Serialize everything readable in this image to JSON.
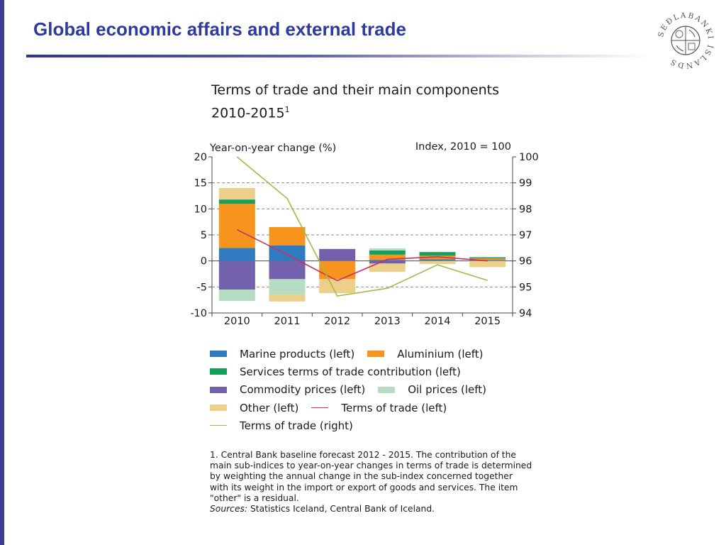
{
  "slide": {
    "title": "Global economic affairs and external trade"
  },
  "logo": {
    "text": "SEÐLABANKI ÍSLANDS"
  },
  "chart_title": {
    "line1": "Terms of trade and their main components",
    "line2": "2010-2015",
    "superscript": "1"
  },
  "chart_data": {
    "type": "bar",
    "stacked": true,
    "categories": [
      "2010",
      "2011",
      "2012",
      "2013",
      "2014",
      "2015"
    ],
    "left_axis": {
      "label": "Year-on-year change (%)",
      "range": [
        -10,
        20
      ],
      "ticks": [
        "20",
        "15",
        "10",
        "5",
        "0",
        "-5",
        "-10"
      ],
      "tick_values": [
        20,
        15,
        10,
        5,
        0,
        -5,
        -10
      ]
    },
    "right_axis": {
      "label": "Index, 2010 = 100",
      "range": [
        94,
        100
      ],
      "ticks": [
        "100",
        "99",
        "98",
        "97",
        "96",
        "95",
        "94"
      ],
      "tick_values": [
        100,
        99,
        98,
        97,
        96,
        95,
        94
      ]
    },
    "series": [
      {
        "name": "Marine products (left)",
        "color": "#2f7bc0",
        "values": [
          2.5,
          3.0,
          0.0,
          0.2,
          0.3,
          0.2
        ]
      },
      {
        "name": "Aluminium (left)",
        "color": "#f7941d",
        "values": [
          8.5,
          3.5,
          -3.5,
          1.0,
          0.7,
          0.3
        ]
      },
      {
        "name": "Services terms of trade contribution (left)",
        "color": "#12a05c",
        "values": [
          0.8,
          0.0,
          0.0,
          0.8,
          0.7,
          0.2
        ]
      },
      {
        "name": "Commodity prices (left)",
        "color": "#7461ad",
        "values": [
          -5.5,
          -3.5,
          2.3,
          -0.5,
          0.0,
          0.0
        ]
      },
      {
        "name": "Oil prices (left)",
        "color": "#b7dcc4",
        "values": [
          -2.2,
          -3.0,
          0.0,
          0.4,
          0.0,
          0.0
        ]
      },
      {
        "name": "Other (left)",
        "color": "#ecd08a",
        "values": [
          2.2,
          -1.3,
          -2.7,
          -1.6,
          -0.6,
          -1.2
        ]
      }
    ],
    "lines": [
      {
        "name": "Terms of trade (left)",
        "axis": "left",
        "color": "#cc2e62",
        "values": [
          6.0,
          1.2,
          -3.8,
          0.3,
          0.8,
          0.0
        ]
      },
      {
        "name": "Terms of trade (right)",
        "axis": "right",
        "color": "#a7b84a",
        "values": [
          100.0,
          98.4,
          94.65,
          94.95,
          95.85,
          95.25
        ]
      }
    ],
    "grid": "dashed horizontal"
  },
  "legend": [
    [
      {
        "label": "Marine products (left)",
        "kind": "box",
        "color": "#2f7bc0"
      },
      {
        "label": "Aluminium (left)",
        "kind": "box",
        "color": "#f7941d"
      }
    ],
    [
      {
        "label": "Services terms of trade contribution (left)",
        "kind": "box",
        "color": "#12a05c"
      }
    ],
    [
      {
        "label": "Commodity prices (left)",
        "kind": "box",
        "color": "#7461ad"
      },
      {
        "label": "Oil prices (left)",
        "kind": "box",
        "color": "#b7dcc4"
      }
    ],
    [
      {
        "label": "Other (left)",
        "kind": "box",
        "color": "#ecd08a"
      },
      {
        "label": "Terms of trade (left)",
        "kind": "line",
        "color": "#cc2e62"
      }
    ],
    [
      {
        "label": "Terms of trade (right)",
        "kind": "line",
        "color": "#a7b84a"
      }
    ]
  ],
  "footnote": {
    "lines": [
      "1. Central Bank baseline forecast 2012 - 2015. The contribution of the",
      "main sub-indices to year-on-year changes in terms of trade is determined",
      "by weighting the annual change in the sub-index concerned together",
      "with its weight in the import or export of goods and services. The item",
      "\"other\" is a residual."
    ],
    "sources_label": "Sources:",
    "sources_text": " Statistics Iceland, Central Bank of Iceland."
  }
}
